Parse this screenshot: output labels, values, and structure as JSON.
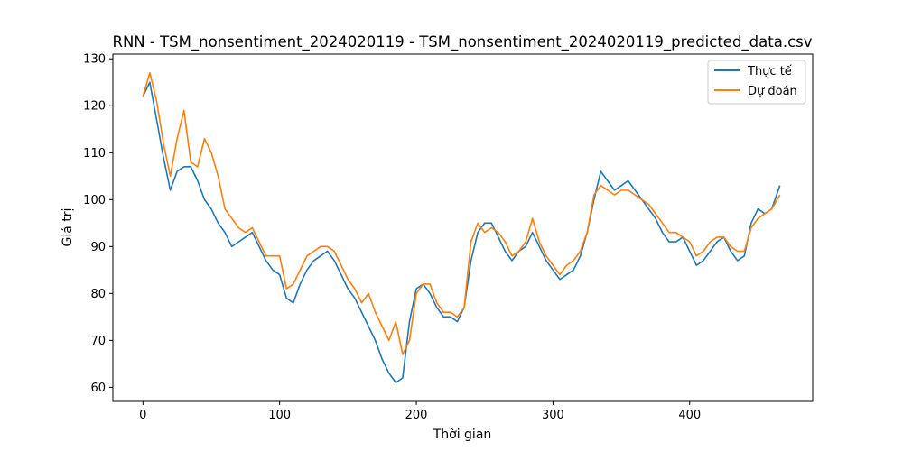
{
  "chart_data": {
    "type": "line",
    "title": "RNN - TSM_nonsentiment_2024020119 - TSM_nonsentiment_2024020119_predicted_data.csv",
    "xlabel": "Thời gian",
    "ylabel": "Giá trị",
    "xlim": [
      -22,
      490
    ],
    "ylim": [
      57,
      131
    ],
    "xticks": [
      0,
      100,
      200,
      300,
      400
    ],
    "yticks": [
      60,
      70,
      80,
      90,
      100,
      110,
      120,
      130
    ],
    "legend_position": "top-right",
    "grid": false,
    "series": [
      {
        "name": "Thực tế",
        "color": "#1f77b4",
        "x": [
          0,
          5,
          10,
          15,
          20,
          25,
          30,
          35,
          40,
          45,
          50,
          55,
          60,
          65,
          70,
          75,
          80,
          85,
          90,
          95,
          100,
          105,
          110,
          115,
          120,
          125,
          130,
          135,
          140,
          145,
          150,
          155,
          160,
          165,
          170,
          175,
          180,
          185,
          190,
          195,
          200,
          205,
          210,
          215,
          220,
          225,
          230,
          235,
          240,
          245,
          250,
          255,
          260,
          265,
          270,
          275,
          280,
          285,
          290,
          295,
          300,
          305,
          310,
          315,
          320,
          325,
          330,
          335,
          340,
          345,
          350,
          355,
          360,
          365,
          370,
          375,
          380,
          385,
          390,
          395,
          400,
          405,
          410,
          415,
          420,
          425,
          430,
          435,
          440,
          445,
          450,
          455,
          460,
          466
        ],
        "y": [
          122,
          125,
          117,
          109,
          102,
          106,
          107,
          107,
          104,
          100,
          98,
          95,
          93,
          90,
          91,
          92,
          93,
          90,
          87,
          85,
          84,
          79,
          78,
          82,
          85,
          87,
          88,
          89,
          87,
          84,
          81,
          79,
          76,
          73,
          70,
          66,
          63,
          61,
          62,
          74,
          81,
          82,
          80,
          77,
          75,
          75,
          74,
          77,
          87,
          93,
          95,
          95,
          92,
          89,
          87,
          89,
          90,
          93,
          90,
          87,
          85,
          83,
          84,
          85,
          88,
          93,
          100,
          106,
          104,
          102,
          103,
          104,
          102,
          100,
          98,
          96,
          93,
          91,
          91,
          92,
          89,
          86,
          87,
          89,
          91,
          92,
          89,
          87,
          88,
          95,
          98,
          97,
          98,
          103
        ]
      },
      {
        "name": "Dự đoán",
        "color": "#ff7f0e",
        "x": [
          0,
          5,
          10,
          15,
          20,
          25,
          30,
          35,
          40,
          45,
          50,
          55,
          60,
          65,
          70,
          75,
          80,
          85,
          90,
          95,
          100,
          105,
          110,
          115,
          120,
          125,
          130,
          135,
          140,
          145,
          150,
          155,
          160,
          165,
          170,
          175,
          180,
          185,
          190,
          195,
          200,
          205,
          210,
          215,
          220,
          225,
          230,
          235,
          240,
          245,
          250,
          255,
          260,
          265,
          270,
          275,
          280,
          285,
          290,
          295,
          300,
          305,
          310,
          315,
          320,
          325,
          330,
          335,
          340,
          345,
          350,
          355,
          360,
          365,
          370,
          375,
          380,
          385,
          390,
          395,
          400,
          405,
          410,
          415,
          420,
          425,
          430,
          435,
          440,
          445,
          450,
          455,
          460,
          466
        ],
        "y": [
          122,
          127,
          121,
          112,
          105,
          113,
          119,
          108,
          107,
          113,
          110,
          105,
          98,
          96,
          94,
          93,
          94,
          91,
          88,
          88,
          88,
          81,
          82,
          85,
          88,
          89,
          90,
          90,
          89,
          86,
          83,
          81,
          78,
          80,
          76,
          73,
          70,
          74,
          67,
          70,
          80,
          82,
          82,
          78,
          76,
          76,
          75,
          77,
          91,
          95,
          93,
          94,
          93,
          91,
          88,
          89,
          91,
          96,
          91,
          88,
          86,
          84,
          86,
          87,
          89,
          93,
          101,
          103,
          102,
          101,
          102,
          102,
          101,
          100,
          99,
          97,
          95,
          93,
          93,
          92,
          91,
          88,
          89,
          91,
          92,
          92,
          90,
          89,
          89,
          94,
          96,
          97,
          98,
          101
        ]
      }
    ]
  }
}
